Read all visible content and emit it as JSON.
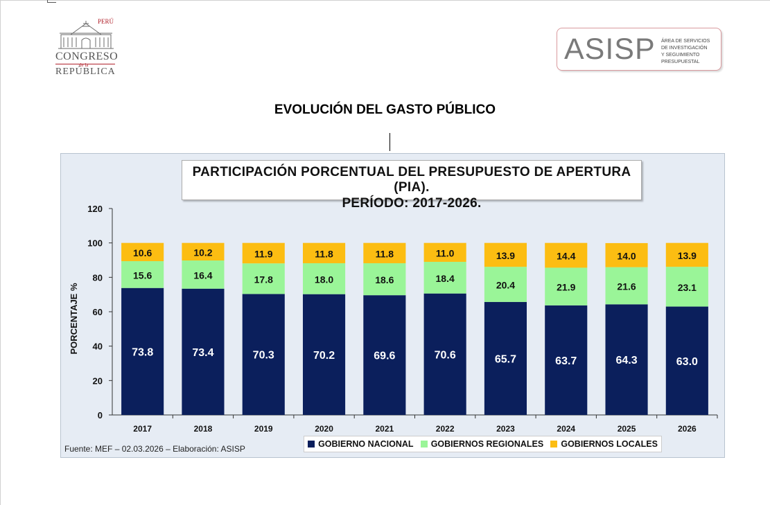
{
  "header": {
    "congreso_logo": {
      "peru": "PERÚ",
      "word1": "CONGRESO",
      "word2": "de la",
      "word3": "REPÚBLICA"
    },
    "asisp_logo": {
      "name": "ASISP",
      "description": "ÁREA DE SERVICIOS\nDE INVESTIGACIÓN\nY SEGUIMIENTO\nPRESUPUESTAL"
    }
  },
  "page_title": "EVOLUCIÓN DEL GASTO PÚBLICO",
  "chart_data": {
    "type": "bar",
    "stacked": true,
    "title_line1": "PARTICIPACIÓN PORCENTUAL DEL PRESUPUESTO DE APERTURA (PIA).",
    "title_line2": "PERÍODO: 2017-2026.",
    "ylabel": "PORCENTAJE %",
    "xlabel": "",
    "ylim": [
      0,
      120
    ],
    "yticks": [
      0,
      20,
      40,
      60,
      80,
      100,
      120
    ],
    "grid": false,
    "legend_position": "bottom",
    "categories": [
      "2017",
      "2018",
      "2019",
      "2020",
      "2021",
      "2022",
      "2023",
      "2024",
      "2025",
      "2026"
    ],
    "series": [
      {
        "name": "GOBIERNO NACIONAL",
        "color": "#0b1f5c",
        "label_color": "#ffffff",
        "values": [
          73.8,
          73.4,
          70.3,
          70.2,
          69.6,
          70.6,
          65.7,
          63.7,
          64.3,
          63.0
        ]
      },
      {
        "name": "GOBIERNOS REGIONALES",
        "color": "#9af598",
        "label_color": "#111111",
        "values": [
          15.6,
          16.4,
          17.8,
          18.0,
          18.6,
          18.4,
          20.4,
          21.9,
          21.6,
          23.1
        ]
      },
      {
        "name": "GOBIERNOS LOCALES",
        "color": "#fcbd12",
        "label_color": "#111111",
        "values": [
          10.6,
          10.2,
          11.9,
          11.8,
          11.8,
          11.0,
          13.9,
          14.4,
          14.0,
          13.9
        ]
      }
    ]
  },
  "source_note": "Fuente:  MEF  – 02.03.2026 – Elaboración: ASISP"
}
